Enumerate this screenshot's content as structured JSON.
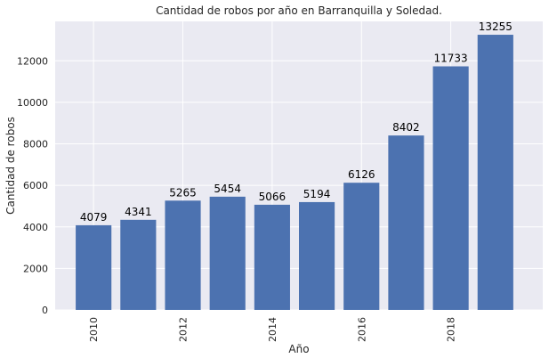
{
  "chart_data": {
    "type": "bar",
    "title": "Cantidad de robos por año en Barranquilla y Soledad.",
    "xlabel": "Año",
    "ylabel": "Cantidad de robos",
    "categories": [
      2010,
      2011,
      2012,
      2013,
      2014,
      2015,
      2016,
      2017,
      2018,
      2019
    ],
    "values": [
      4079,
      4341,
      5265,
      5454,
      5066,
      5194,
      6126,
      8402,
      11733,
      13255
    ],
    "x_ticks": [
      2010,
      2012,
      2014,
      2016,
      2018
    ],
    "y_ticks": [
      0,
      2000,
      4000,
      6000,
      8000,
      10000,
      12000
    ],
    "ylim": [
      0,
      13900
    ],
    "xlim": [
      2009.14,
      2020.06
    ],
    "grid": true,
    "colors": {
      "bar": "#4c72b0",
      "plot_background": "#eaeaf2",
      "grid": "#ffffff"
    }
  }
}
